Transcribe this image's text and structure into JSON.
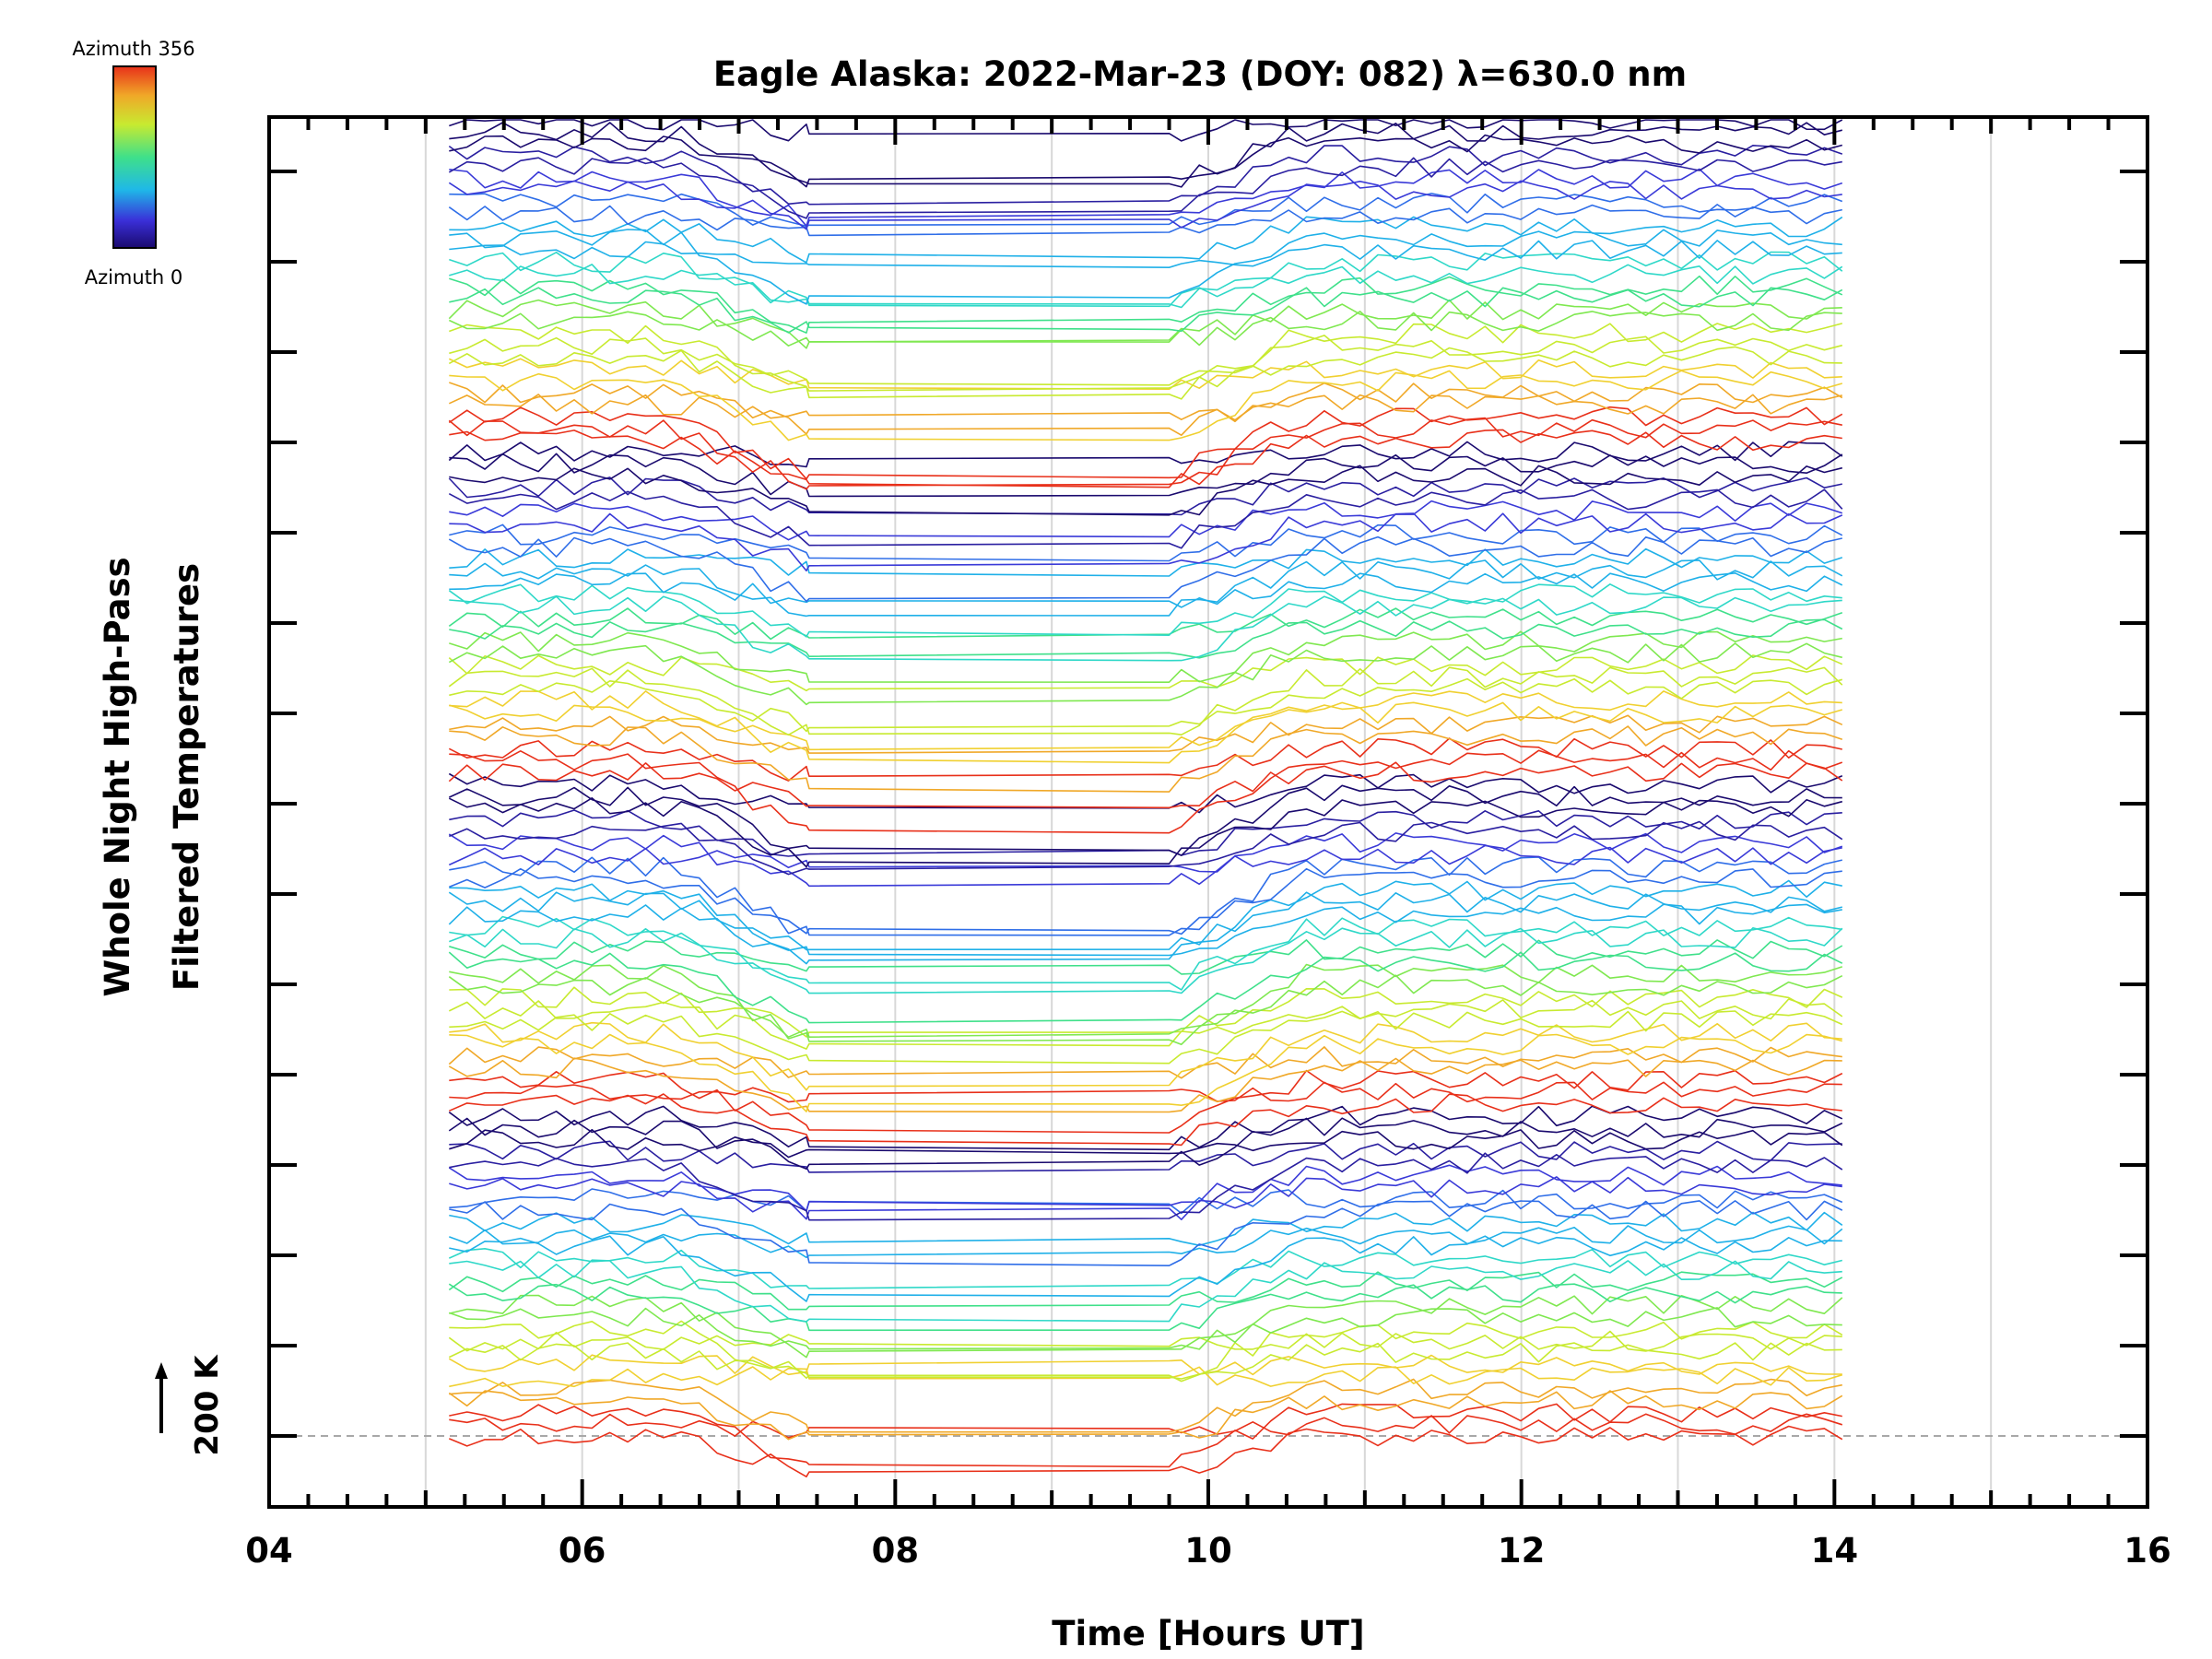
{
  "chart_data": {
    "type": "line",
    "title": "Eagle Alaska: 2022-Mar-23 (DOY: 082) λ=630.0 nm",
    "xlabel": "Time [Hours UT]",
    "ylabel_line1": "Whole Night High-Pass",
    "ylabel_line2": "Filtered Temperatures",
    "xlim": [
      4,
      16
    ],
    "x_tick_labels": [
      "04",
      "06",
      "08",
      "10",
      "12",
      "14",
      "16"
    ],
    "x_major_ticks": [
      4,
      6,
      8,
      10,
      12,
      14,
      16
    ],
    "x_gridlines": [
      5,
      6,
      7,
      8,
      9,
      10,
      11,
      12,
      13,
      14,
      15
    ],
    "data_time_range": [
      5.15,
      14.05
    ],
    "gap_range": [
      7.45,
      9.75
    ],
    "scale_bar_label": "200 K",
    "baseline_value_label": "200 K",
    "grid": "vertical",
    "legend": {
      "placement": "top-left",
      "top_label": "Azimuth 356",
      "bottom_label": "Azimuth 0",
      "colormap": "rainbow"
    },
    "series_count": 112,
    "colors": {
      "axis": "#000000",
      "grid": "#d8d8d8",
      "baseline": "#a8a8a8"
    }
  }
}
